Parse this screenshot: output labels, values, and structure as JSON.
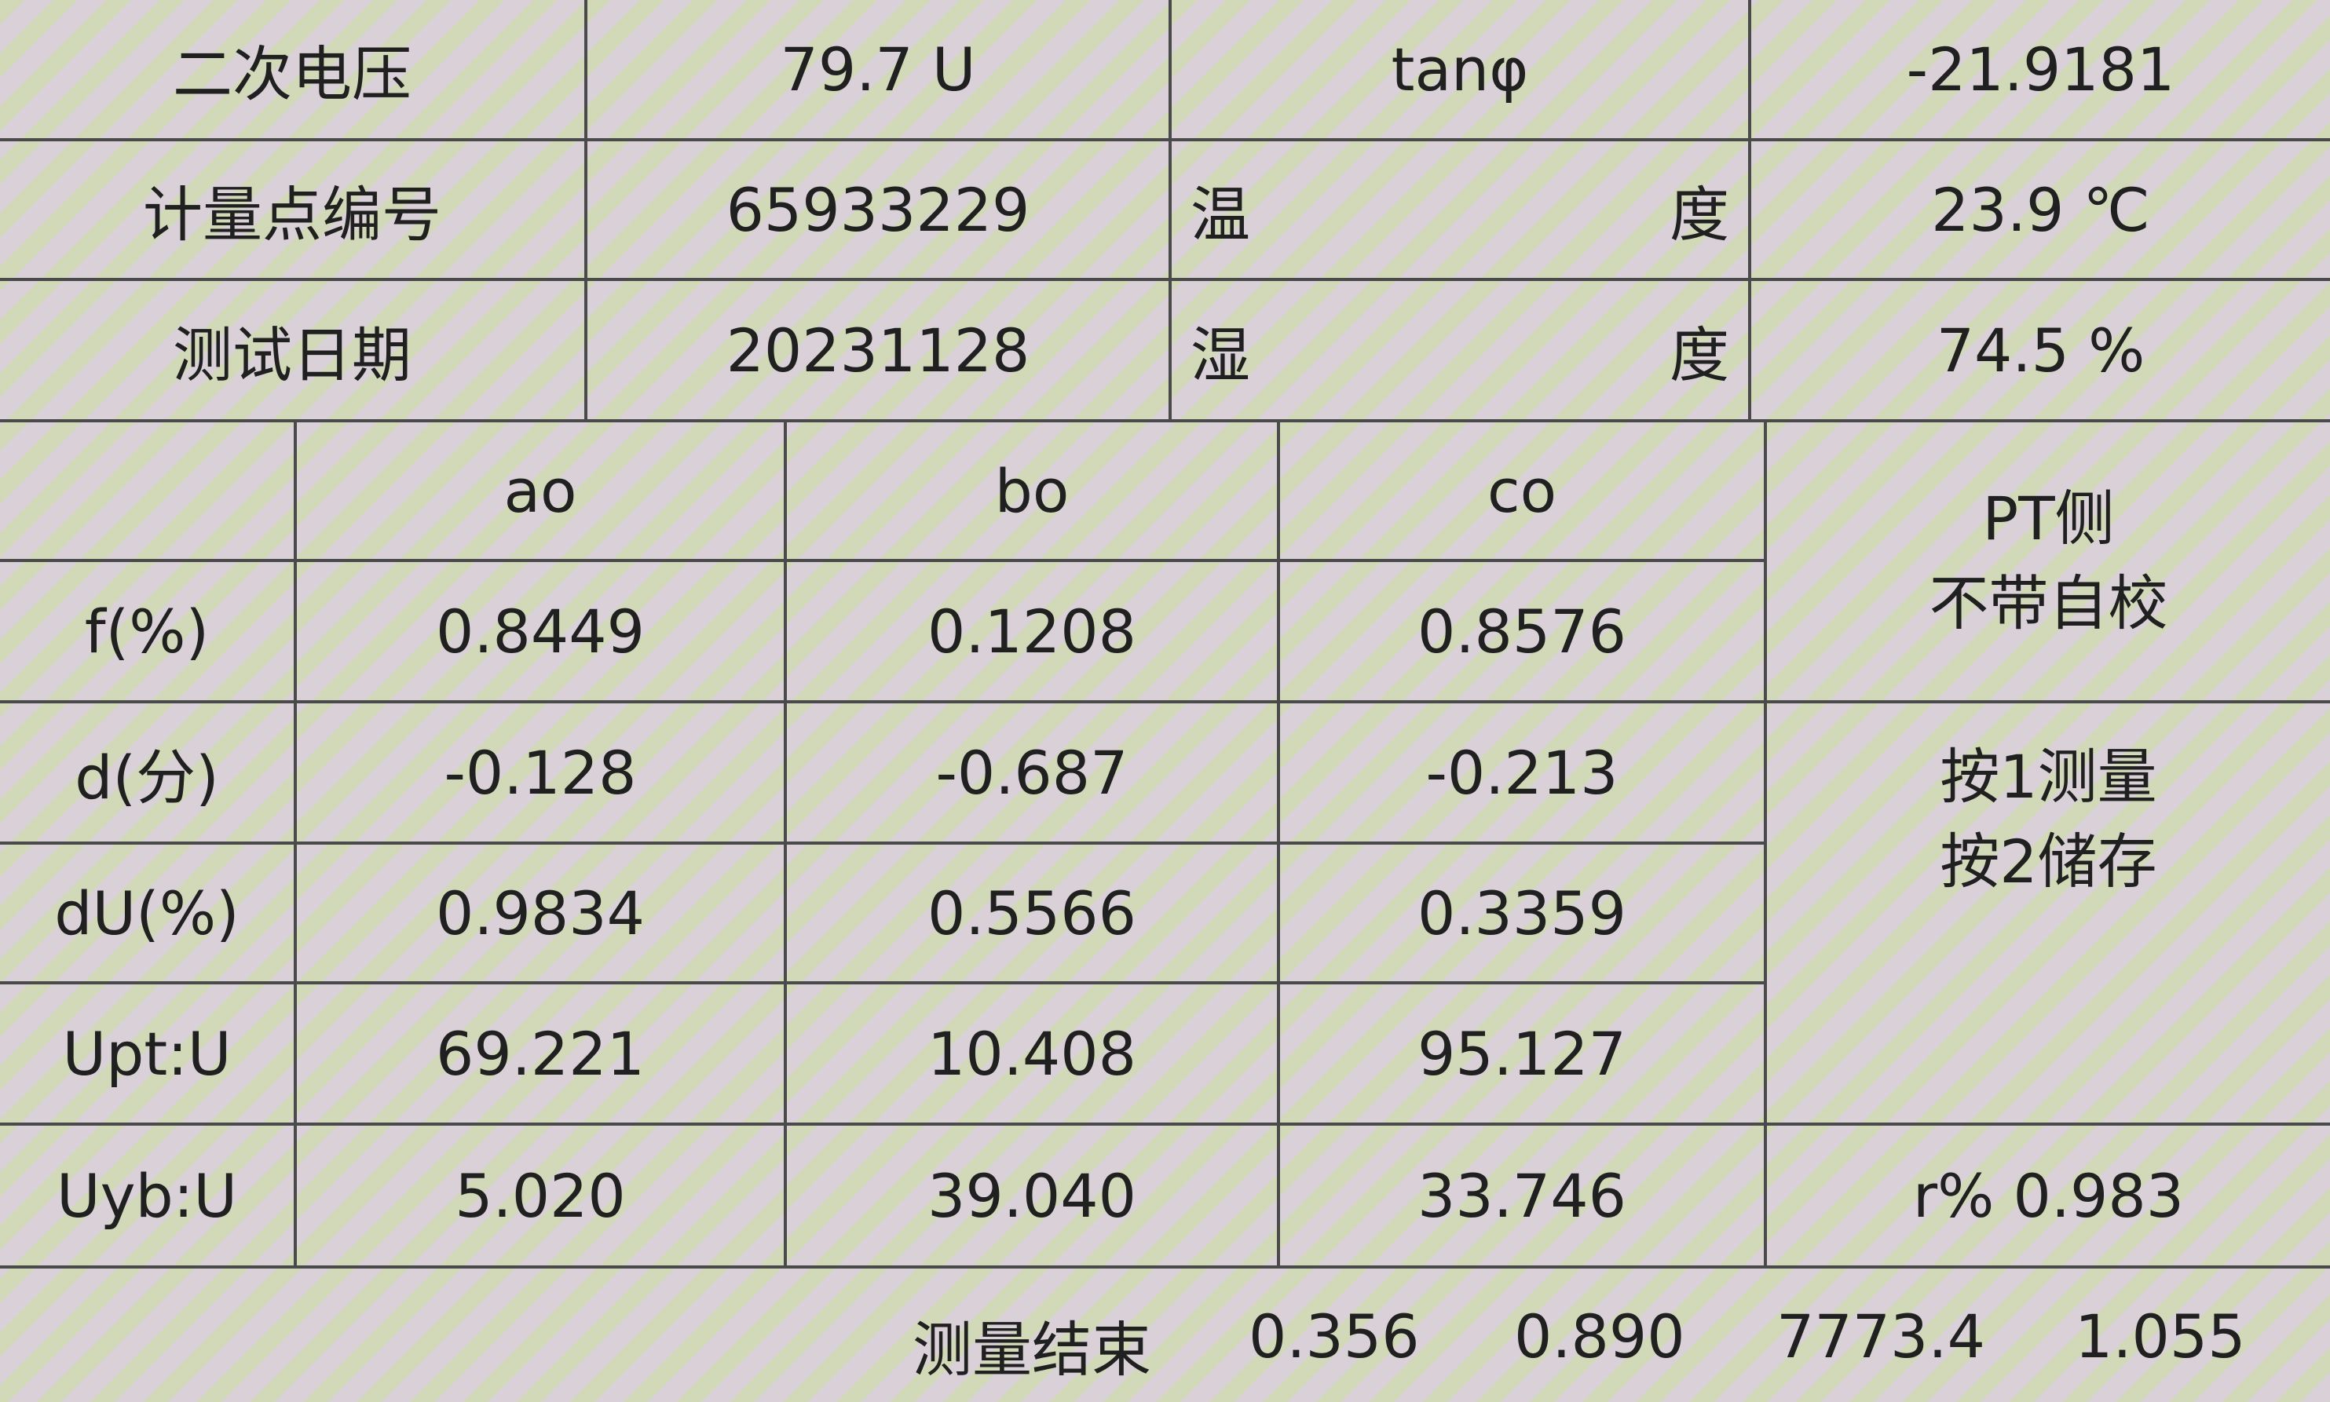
{
  "top": {
    "secondary_voltage": {
      "label": "二次电压",
      "value": "79.7 U"
    },
    "tan_phi": {
      "label": "tanφ",
      "value": "-21.9181"
    },
    "meter_point": {
      "label": "计量点编号",
      "value": "65933229"
    },
    "temperature": {
      "label_left": "温",
      "label_right": "度",
      "value": "23.9 ℃"
    },
    "test_date": {
      "label": "测试日期",
      "value": "20231128"
    },
    "humidity": {
      "label_left": "湿",
      "label_right": "度",
      "value": "74.5 %"
    }
  },
  "table": {
    "columns": [
      "ao",
      "bo",
      "co"
    ],
    "rows": [
      {
        "label": "f(%)",
        "values": [
          "0.8449",
          "0.1208",
          "0.8576"
        ]
      },
      {
        "label": "d(分)",
        "values": [
          "-0.128",
          "-0.687",
          "-0.213"
        ]
      },
      {
        "label": "dU(%)",
        "values": [
          "0.9834",
          "0.5566",
          "0.3359"
        ]
      },
      {
        "label": "Upt:U",
        "values": [
          "69.221",
          "10.408",
          "95.127"
        ]
      },
      {
        "label": "Uyb:U",
        "values": [
          "5.020",
          "39.040",
          "33.746"
        ]
      }
    ]
  },
  "side": {
    "mode_line1": "PT侧",
    "mode_line2": "不带自校",
    "hint_line1": "按1测量",
    "hint_line2": "按2储存",
    "r_percent": "r% 0.983"
  },
  "footer": {
    "status": "测量结束",
    "values": [
      "0.356",
      "0.890",
      "7773.4",
      "1.055"
    ]
  }
}
